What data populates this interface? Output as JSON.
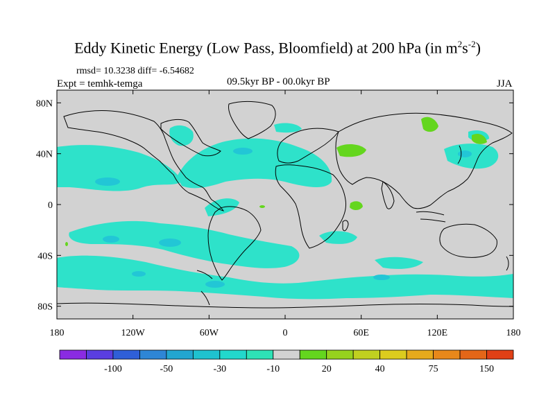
{
  "title": {
    "main": "Eddy Kinetic Energy (Low Pass, Bloomfield) at 200 hPa (in m",
    "sup1": "2",
    "mid": "s",
    "sup2": "-2",
    "end": ")"
  },
  "stats": "rmsd= 10.3238 diff= -6.54682",
  "experiment": "Expt = temhk-temga",
  "period": "09.5kyr BP - 00.0kyr BP",
  "season": "JJA",
  "map": {
    "background_color": "#d2d2d2",
    "lat_ticks": [
      {
        "lat": 80,
        "label": "80N"
      },
      {
        "lat": 40,
        "label": "40N"
      },
      {
        "lat": 0,
        "label": "0"
      },
      {
        "lat": -40,
        "label": "40S"
      },
      {
        "lat": -80,
        "label": "80S"
      }
    ],
    "lon_ticks": [
      {
        "lon": -180,
        "label": "180"
      },
      {
        "lon": -120,
        "label": "120W"
      },
      {
        "lon": -60,
        "label": "60W"
      },
      {
        "lon": 0,
        "label": "0"
      },
      {
        "lon": 60,
        "label": "60E"
      },
      {
        "lon": 120,
        "label": "120E"
      },
      {
        "lon": 180,
        "label": "180"
      }
    ]
  },
  "colorbar": {
    "colors": [
      "#8a2be2",
      "#5a3ee0",
      "#2f5fd8",
      "#2e86d6",
      "#22a6d0",
      "#1fc2cf",
      "#22d8cc",
      "#2ee2b6",
      "#d2d2d2",
      "#64d61e",
      "#96d21e",
      "#c0d020",
      "#dccc1e",
      "#e6aa1c",
      "#e8881a",
      "#e46618",
      "#e04016"
    ],
    "labels": [
      {
        "after_box": 2,
        "text": "-100"
      },
      {
        "after_box": 4,
        "text": "-50"
      },
      {
        "after_box": 6,
        "text": "-30"
      },
      {
        "after_box": 8,
        "text": "-10"
      },
      {
        "after_box": 10,
        "text": "20"
      },
      {
        "after_box": 12,
        "text": "40"
      },
      {
        "after_box": 14,
        "text": "75"
      },
      {
        "after_box": 16,
        "text": "150"
      }
    ]
  },
  "fields": {
    "cyan_light": "#2ee2ca",
    "cyan_mid": "#22c6d6",
    "green": "#64d61e"
  }
}
